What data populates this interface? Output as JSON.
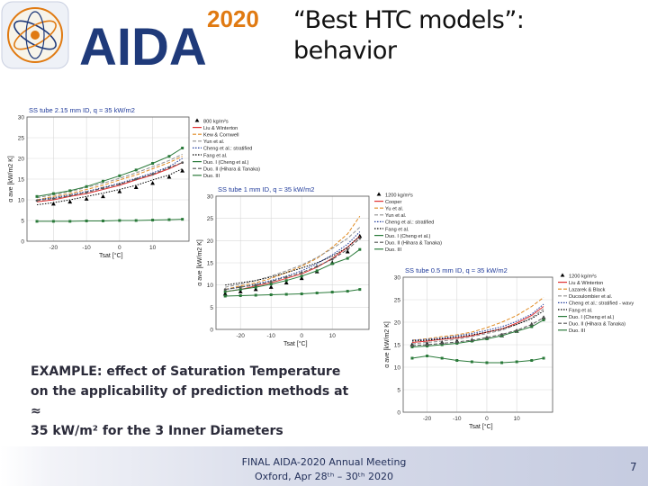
{
  "header": {
    "logo_text": "AIDA",
    "logo_year": "2020",
    "title_line1": "“Best HTC models”:",
    "title_line2": "behavior"
  },
  "caption": {
    "line1": "EXAMPLE: effect of Saturation Temperature",
    "line2": "on the applicability of prediction methods at ≈",
    "line3": "35 kW/m² for the 3 Inner Diameters"
  },
  "footer": {
    "line1": "FINAL AIDA-2020 Annual Meeting",
    "line2": "Oxford, Apr 28ᵗʰ – 30ᵗʰ 2020",
    "page_number": "7"
  },
  "colors": {
    "brand_blue": "#1f3a7a",
    "brand_orange": "#e07a12",
    "footer_text": "#23305a"
  },
  "chart_data": [
    {
      "type": "line",
      "title": "SS tube 2.15 mm ID, q ≈ 35 kW/m2",
      "xlabel": "Tsat [°C]",
      "ylabel": "α ave [kW/m2 K]",
      "xlim": [
        -28,
        21
      ],
      "ylim": [
        0,
        30
      ],
      "xticks": [
        -20,
        -10,
        0,
        10
      ],
      "yticks": [
        0,
        5,
        10,
        15,
        20,
        25,
        30
      ],
      "x": [
        -25,
        -20,
        -15,
        -10,
        -5,
        0,
        5,
        10,
        15,
        19
      ],
      "legend_placement": "right",
      "series": [
        {
          "name": "800 kg/m²s",
          "color": "#000000",
          "style": "marker-only",
          "marker": "triangle",
          "values": [
            null,
            9.0,
            9.5,
            10.2,
            10.8,
            12.0,
            13.0,
            14.0,
            15.5,
            17.0
          ]
        },
        {
          "name": "Liu & Winterton",
          "color": "#e03030",
          "style": "solid",
          "values": [
            9.5,
            10.0,
            10.8,
            11.5,
            12.5,
            13.5,
            14.8,
            16.0,
            17.5,
            19.0
          ]
        },
        {
          "name": "Kew & Cornwell",
          "color": "#e08a20",
          "style": "dashed",
          "values": [
            10.0,
            10.8,
            11.5,
            12.5,
            13.5,
            14.8,
            16.0,
            17.5,
            19.0,
            20.5
          ]
        },
        {
          "name": "Yun et al.",
          "color": "#909090",
          "style": "dashed",
          "values": [
            10.5,
            11.2,
            12.0,
            13.0,
            14.0,
            15.2,
            16.5,
            18.0,
            19.5,
            21.0
          ]
        },
        {
          "name": "Cheng et al.: stratified",
          "color": "#1f3a9a",
          "style": "dotted",
          "values": [
            10.0,
            10.5,
            11.2,
            12.0,
            13.0,
            14.0,
            15.2,
            16.5,
            18.0,
            20.0
          ]
        },
        {
          "name": "Fang et al.",
          "color": "#000000",
          "style": "dotted",
          "values": [
            8.8,
            9.3,
            10.0,
            10.8,
            11.6,
            12.5,
            13.5,
            14.8,
            16.0,
            17.5
          ]
        },
        {
          "name": "Duo. I (Cheng et al.)",
          "color": "#2a7a3a",
          "style": "solid",
          "marker": "square",
          "values": [
            10.8,
            11.5,
            12.2,
            13.2,
            14.5,
            15.8,
            17.2,
            18.8,
            20.5,
            22.5
          ]
        },
        {
          "name": "Duo. II (Hihara & Tanaka)",
          "color": "#555555",
          "style": "dashed",
          "marker": "circle",
          "values": [
            9.8,
            10.3,
            11.0,
            11.8,
            12.8,
            13.8,
            15.0,
            16.2,
            17.8,
            19.0
          ]
        },
        {
          "name": "Duo. III",
          "color": "#2a7a3a",
          "style": "solid",
          "marker": "square",
          "values": [
            4.8,
            4.8,
            4.8,
            4.9,
            4.9,
            5.0,
            5.0,
            5.1,
            5.2,
            5.3
          ]
        }
      ]
    },
    {
      "type": "line",
      "title": "SS tube 1 mm ID, q ≈ 35 kW/m2",
      "xlabel": "Tsat [°C]",
      "ylabel": "α ave [kW/m2 K]",
      "xlim": [
        -28,
        22
      ],
      "ylim": [
        0,
        30
      ],
      "xticks": [
        -20,
        -10,
        0,
        10
      ],
      "yticks": [
        0,
        5,
        10,
        15,
        20,
        25,
        30
      ],
      "x": [
        -25,
        -20,
        -15,
        -10,
        -5,
        0,
        5,
        10,
        15,
        19
      ],
      "legend_placement": "right",
      "series": [
        {
          "name": "1200 kg/m²s",
          "color": "#000000",
          "style": "marker-only",
          "marker": "triangle",
          "values": [
            8.0,
            8.5,
            9.0,
            9.5,
            10.5,
            11.5,
            13.0,
            15.0,
            17.5,
            21.0
          ]
        },
        {
          "name": "Cooper",
          "color": "#e03030",
          "style": "solid",
          "values": [
            8.5,
            9.0,
            9.8,
            10.5,
            11.5,
            12.5,
            14.0,
            16.0,
            18.5,
            21.0
          ]
        },
        {
          "name": "Yu et al.",
          "color": "#e08a20",
          "style": "dashed",
          "values": [
            9.0,
            9.8,
            10.5,
            11.5,
            12.8,
            14.2,
            16.0,
            18.5,
            21.5,
            25.5
          ]
        },
        {
          "name": "Yun et al.",
          "color": "#909090",
          "style": "dashed",
          "values": [
            9.5,
            10.2,
            11.0,
            12.0,
            13.2,
            14.5,
            16.2,
            18.2,
            20.5,
            23.0
          ]
        },
        {
          "name": "Cheng et al.: stratified",
          "color": "#1f3a9a",
          "style": "dotted",
          "values": [
            9.0,
            9.5,
            10.2,
            11.0,
            12.0,
            13.2,
            14.8,
            16.8,
            19.2,
            22.0
          ]
        },
        {
          "name": "Fang et al.",
          "color": "#000000",
          "style": "dotted",
          "values": [
            10.0,
            10.5,
            11.0,
            11.8,
            12.8,
            13.8,
            15.0,
            16.5,
            18.5,
            21.0
          ]
        },
        {
          "name": "Duo. I (Cheng et al.)",
          "color": "#2a7a3a",
          "style": "solid",
          "marker": "square",
          "values": [
            8.5,
            9.0,
            9.5,
            10.2,
            11.0,
            12.0,
            13.2,
            14.8,
            16.0,
            18.0
          ]
        },
        {
          "name": "Duo. II (Hihara & Tanaka)",
          "color": "#555555",
          "style": "dashed",
          "marker": "circle",
          "values": [
            9.0,
            9.5,
            10.0,
            10.8,
            11.8,
            12.8,
            14.2,
            15.8,
            18.0,
            20.5
          ]
        },
        {
          "name": "Duo. III",
          "color": "#2a7a3a",
          "style": "solid",
          "marker": "square",
          "values": [
            7.5,
            7.6,
            7.7,
            7.8,
            7.9,
            8.0,
            8.2,
            8.4,
            8.6,
            9.0
          ]
        }
      ]
    },
    {
      "type": "line",
      "title": "SS tube 0.5 mm ID, q ≈ 35 kW/m2",
      "xlabel": "Tsat [°C]",
      "ylabel": "α ave [kW/m2 K]",
      "xlim": [
        -28,
        22
      ],
      "ylim": [
        0,
        30
      ],
      "xticks": [
        -20,
        -10,
        0,
        10
      ],
      "yticks": [
        0,
        5,
        10,
        15,
        20,
        25,
        30
      ],
      "x": [
        -25,
        -20,
        -15,
        -10,
        -5,
        0,
        5,
        10,
        15,
        19
      ],
      "legend_placement": "right",
      "series": [
        {
          "name": "1200 kg/m²s",
          "color": "#000000",
          "style": "marker-only",
          "marker": "triangle",
          "values": [
            15.0,
            15.2,
            15.5,
            15.8,
            16.0,
            16.5,
            17.0,
            18.0,
            19.5,
            21.0
          ]
        },
        {
          "name": "Liu & Winterton",
          "color": "#e03030",
          "style": "solid",
          "values": [
            15.5,
            15.8,
            16.2,
            16.5,
            17.0,
            17.8,
            18.5,
            19.8,
            21.5,
            23.5
          ]
        },
        {
          "name": "Lazarek & Black",
          "color": "#e08a20",
          "style": "dashed",
          "values": [
            16.0,
            16.3,
            16.8,
            17.2,
            17.8,
            18.8,
            20.0,
            21.5,
            23.5,
            25.5
          ]
        },
        {
          "name": "Ducoulombier et al.",
          "color": "#909090",
          "style": "dashed",
          "values": [
            15.2,
            15.5,
            15.8,
            16.2,
            16.8,
            17.5,
            18.2,
            19.5,
            21.0,
            23.0
          ]
        },
        {
          "name": "Cheng et al.: stratified - wavy",
          "color": "#1f3a9a",
          "style": "dotted",
          "values": [
            16.0,
            16.2,
            16.5,
            17.0,
            17.5,
            18.2,
            19.0,
            20.2,
            21.8,
            24.0
          ]
        },
        {
          "name": "Fang et al.",
          "color": "#000000",
          "style": "dotted",
          "values": [
            15.8,
            16.0,
            16.3,
            16.7,
            17.2,
            17.8,
            18.5,
            19.5,
            20.8,
            22.5
          ]
        },
        {
          "name": "Duo. I (Cheng et al.)",
          "color": "#2a7a3a",
          "style": "solid",
          "marker": "square",
          "values": [
            14.5,
            14.7,
            15.0,
            15.3,
            15.8,
            16.3,
            17.0,
            18.0,
            19.0,
            20.5
          ]
        },
        {
          "name": "Duo. II (Hihara & Tanaka)",
          "color": "#555555",
          "style": "dashed",
          "marker": "circle",
          "values": [
            14.8,
            15.0,
            15.3,
            15.6,
            16.0,
            16.6,
            17.3,
            18.2,
            19.5,
            21.0
          ]
        },
        {
          "name": "Duo. III",
          "color": "#2a7a3a",
          "style": "solid",
          "marker": "square",
          "values": [
            12.0,
            12.5,
            12.0,
            11.5,
            11.2,
            11.0,
            11.0,
            11.2,
            11.5,
            12.0
          ]
        }
      ]
    }
  ]
}
